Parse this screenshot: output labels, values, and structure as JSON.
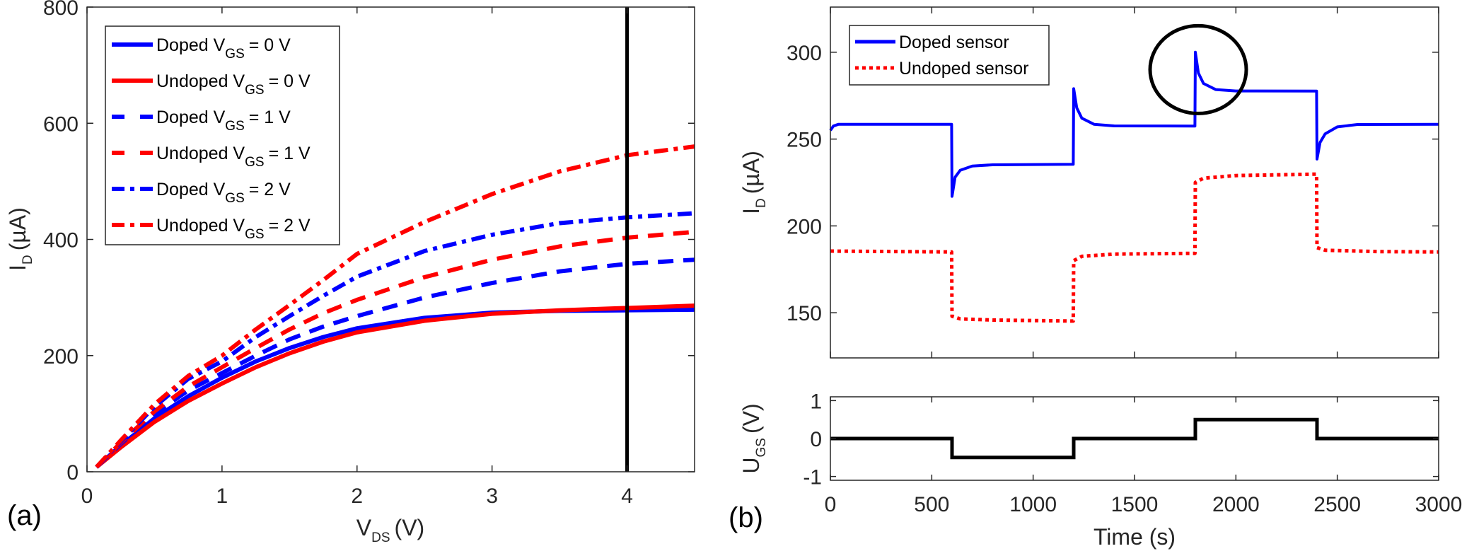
{
  "figure": {
    "panel_labels": [
      "(a)",
      "(b)"
    ]
  },
  "chart_data": [
    {
      "id": "a",
      "type": "line",
      "title": "",
      "xlabel": "V",
      "xlabel_sub": "DS",
      "xlabel_unit": "(V)",
      "ylabel": "I",
      "ylabel_sub": "D",
      "ylabel_unit": "(µA)",
      "xlim": [
        0,
        4.5
      ],
      "ylim": [
        0,
        800
      ],
      "xticks": [
        0,
        1,
        2,
        3,
        4
      ],
      "xtick_labels": [
        "0",
        "1",
        "2",
        "3",
        "4"
      ],
      "yticks": [
        0,
        200,
        400,
        600,
        800
      ],
      "ytick_labels": [
        "0",
        "200",
        "400",
        "600",
        "800"
      ],
      "grid": false,
      "legend_position": "top-left",
      "annotations": [
        {
          "type": "vertical-line",
          "x": 4,
          "color": "#000000"
        }
      ],
      "x": [
        0.07,
        0.25,
        0.5,
        0.75,
        1.0,
        1.25,
        1.5,
        1.75,
        2.0,
        2.5,
        3.0,
        3.5,
        4.0,
        4.5
      ],
      "series": [
        {
          "name": "Doped",
          "vgs": "= 0 V",
          "color": "#0000ff",
          "style": "solid",
          "values": [
            8,
            45,
            92,
            130,
            162,
            190,
            213,
            232,
            247,
            265,
            274,
            277,
            278,
            279
          ]
        },
        {
          "name": "Undoped",
          "vgs": "= 0 V",
          "color": "#ff0000",
          "style": "solid",
          "values": [
            8,
            42,
            86,
            122,
            152,
            180,
            204,
            224,
            240,
            260,
            272,
            278,
            282,
            286
          ]
        },
        {
          "name": "Doped",
          "vgs": "= 1 V",
          "color": "#0000ff",
          "style": "dashed",
          "values": [
            8,
            48,
            100,
            140,
            170,
            200,
            228,
            250,
            268,
            300,
            325,
            345,
            358,
            365
          ]
        },
        {
          "name": "Undoped",
          "vgs": "= 1 V",
          "color": "#ff0000",
          "style": "dashed",
          "values": [
            8,
            50,
            104,
            147,
            180,
            213,
            245,
            273,
            296,
            335,
            365,
            388,
            403,
            413
          ]
        },
        {
          "name": "Doped",
          "vgs": "= 2 V",
          "color": "#0000ff",
          "style": "dashdot",
          "values": [
            8,
            52,
            112,
            160,
            190,
            232,
            268,
            303,
            336,
            380,
            408,
            428,
            438,
            445
          ]
        },
        {
          "name": "Undoped",
          "vgs": "= 2 V",
          "color": "#ff0000",
          "style": "dashdot",
          "values": [
            8,
            54,
            116,
            165,
            200,
            245,
            287,
            330,
            375,
            430,
            478,
            517,
            545,
            560
          ]
        }
      ]
    },
    {
      "id": "b-top",
      "type": "line",
      "title": "",
      "xlabel": "",
      "ylabel": "I",
      "ylabel_sub": "D",
      "ylabel_unit": "(µA)",
      "xlim": [
        0,
        3000
      ],
      "ylim": [
        124,
        326
      ],
      "xticks": [
        0,
        500,
        1000,
        1500,
        2000,
        2500,
        3000
      ],
      "yticks": [
        150,
        200,
        250,
        300
      ],
      "ytick_labels": [
        "150",
        "200",
        "250",
        "300"
      ],
      "grid": false,
      "legend_position": "top-left",
      "annotations": [
        {
          "type": "circle",
          "x": 1800,
          "y": 290,
          "label": "highlighted spike"
        }
      ],
      "series": [
        {
          "name": "Doped sensor",
          "color": "#0000ff",
          "style": "solid",
          "points": [
            [
              0,
              255
            ],
            [
              15,
              257.5
            ],
            [
              40,
              258.5
            ],
            [
              598,
              258.5
            ],
            [
              600,
              217
            ],
            [
              615,
              228
            ],
            [
              640,
              232
            ],
            [
              700,
              234.5
            ],
            [
              800,
              235.2
            ],
            [
              1198,
              235.5
            ],
            [
              1200,
              279
            ],
            [
              1215,
              268
            ],
            [
              1240,
              262
            ],
            [
              1300,
              258.5
            ],
            [
              1400,
              257.6
            ],
            [
              1798,
              257.5
            ],
            [
              1800,
              300
            ],
            [
              1815,
              288
            ],
            [
              1840,
              282
            ],
            [
              1900,
              278.5
            ],
            [
              2000,
              277.7
            ],
            [
              2398,
              277.6
            ],
            [
              2400,
              238.5
            ],
            [
              2415,
              248
            ],
            [
              2440,
              253
            ],
            [
              2500,
              257
            ],
            [
              2600,
              258.4
            ],
            [
              3000,
              258.5
            ]
          ]
        },
        {
          "name": "Undoped sensor",
          "color": "#ff0000",
          "style": "dotted",
          "points": [
            [
              0,
              185.5
            ],
            [
              598,
              185
            ],
            [
              600,
              148
            ],
            [
              640,
              146.5
            ],
            [
              800,
              145.8
            ],
            [
              1198,
              145.2
            ],
            [
              1200,
              180
            ],
            [
              1240,
              182.5
            ],
            [
              1400,
              183.8
            ],
            [
              1798,
              184.2
            ],
            [
              1800,
              225
            ],
            [
              1840,
              227.5
            ],
            [
              2000,
              229
            ],
            [
              2398,
              229.8
            ],
            [
              2400,
              187.5
            ],
            [
              2440,
              186
            ],
            [
              2700,
              185.2
            ],
            [
              3000,
              185
            ]
          ]
        }
      ]
    },
    {
      "id": "b-bottom",
      "type": "line",
      "title": "",
      "xlabel": "Time (s)",
      "ylabel": "U",
      "ylabel_sub": "GS",
      "ylabel_unit": "(V)",
      "xlim": [
        0,
        3000
      ],
      "ylim": [
        -1.1,
        1.1
      ],
      "xticks": [
        0,
        500,
        1000,
        1500,
        2000,
        2500,
        3000
      ],
      "xtick_labels": [
        "0",
        "500",
        "1000",
        "1500",
        "2000",
        "2500",
        "3000"
      ],
      "yticks": [
        -1,
        0,
        1
      ],
      "ytick_labels": [
        "-1",
        "0",
        "1"
      ],
      "grid": false,
      "series": [
        {
          "name": "UGS",
          "color": "#000000",
          "style": "solid",
          "points": [
            [
              0,
              0
            ],
            [
              600,
              0
            ],
            [
              600,
              -0.5
            ],
            [
              1200,
              -0.5
            ],
            [
              1200,
              0
            ],
            [
              1800,
              0
            ],
            [
              1800,
              0.5
            ],
            [
              2400,
              0.5
            ],
            [
              2400,
              0
            ],
            [
              3000,
              0
            ]
          ]
        }
      ]
    }
  ]
}
